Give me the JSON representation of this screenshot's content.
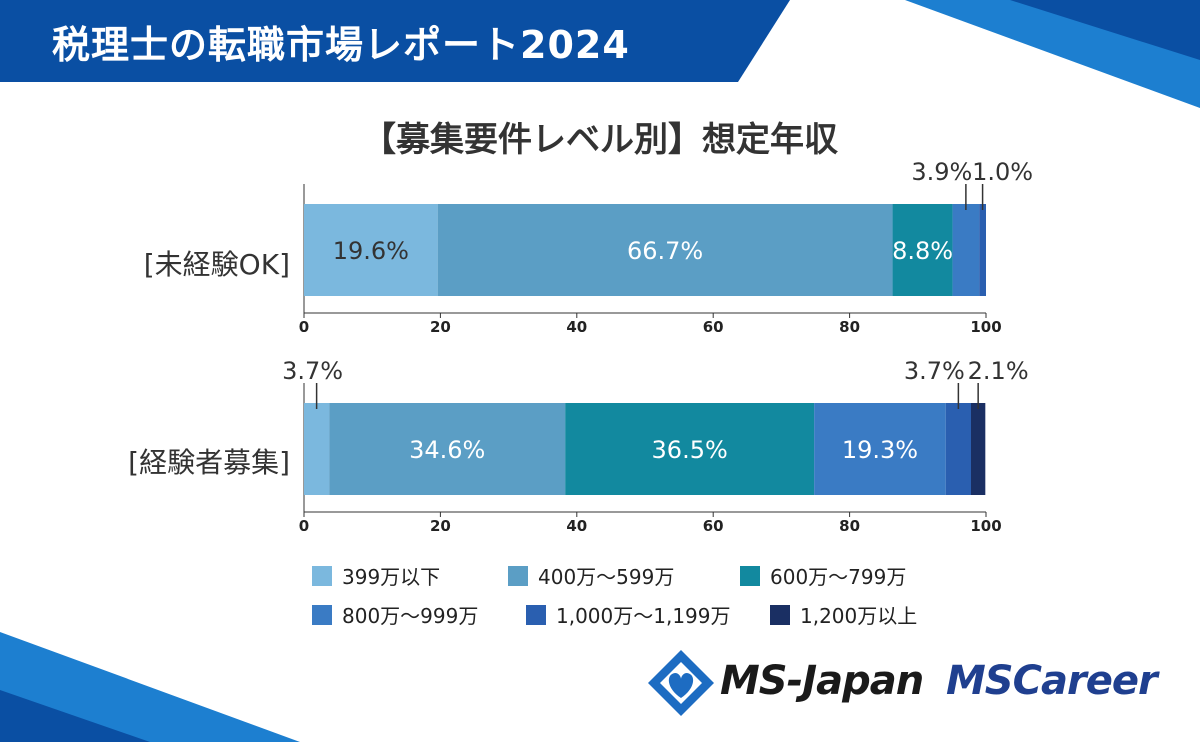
{
  "header": {
    "title": "税理士の転職市場レポート2024"
  },
  "colors": {
    "header_blue": "#0a4fa3",
    "accent_blue": "#1d7fd0",
    "series": [
      "#7bb8de",
      "#5b9ec5",
      "#12899f",
      "#3a7bc4",
      "#2a5fb0",
      "#1a2f63"
    ]
  },
  "chart_data": {
    "type": "bar",
    "orientation": "horizontal-stacked",
    "title": "【募集要件レベル別】想定年収",
    "xlim": [
      0,
      100
    ],
    "xticks": [
      "0",
      "20",
      "40",
      "60",
      "80",
      "100"
    ],
    "legend": [
      "399万以下",
      "400万～599万",
      "600万～799万",
      "800万～999万",
      "1,000万～1,199万",
      "1,200万以上"
    ],
    "panels": [
      {
        "category": "[未経験OK]",
        "values": [
          19.6,
          66.7,
          8.8,
          3.9,
          1.0,
          0
        ],
        "labels": [
          "19.6%",
          "66.7%",
          "8.8%",
          "3.9%",
          "1.0%",
          ""
        ]
      },
      {
        "category": "[経験者募集]",
        "values": [
          3.7,
          34.6,
          36.5,
          19.3,
          3.7,
          2.1
        ],
        "labels": [
          "3.7%",
          "34.6%",
          "36.5%",
          "19.3%",
          "3.7%",
          "2.1%"
        ]
      }
    ]
  },
  "logo": {
    "brand1": "MS-Japan",
    "brand2": "MSCareer"
  }
}
